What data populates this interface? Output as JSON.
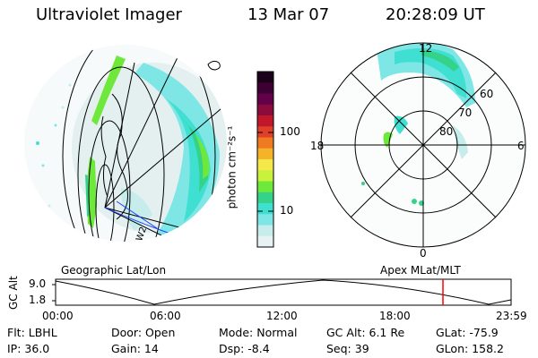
{
  "header": {
    "instrument": "Ultraviolet Imager",
    "date": "13 Mar 07",
    "time": "20:28:09 UT"
  },
  "colorbar": {
    "unit_label": "photon cm⁻²s⁻¹",
    "ticks": [
      "100",
      "10"
    ],
    "colors": [
      "#1a001a",
      "#3c0033",
      "#62004a",
      "#8a0b3c",
      "#c0172b",
      "#e0402a",
      "#f07a22",
      "#f5b32a",
      "#f4e84a",
      "#c8f23c",
      "#6ee83a",
      "#35d28a",
      "#3fe0d2",
      "#7fe6e6",
      "#c6ecec",
      "#e8f2f2"
    ]
  },
  "geo_panel": {
    "label": "Geographic Lat/Lon",
    "edge_mark": "W2"
  },
  "apex_panel": {
    "label": "Apex  MLat/MLT",
    "mlt_labels": [
      "12",
      "18",
      "6",
      "0"
    ],
    "mlat_labels": [
      "60",
      "70",
      "80"
    ]
  },
  "altitude_plot": {
    "ylabel": "GC Alt",
    "yticks": [
      "9.0",
      "1.8"
    ],
    "xticks": [
      "00:00",
      "06:00",
      "12:00",
      "18:00",
      "23:59"
    ],
    "current_time_marker": "20:28",
    "marker_color": "#ff0000"
  },
  "info": {
    "flt": "Flt: LBHL",
    "ip": "IP: 36.0",
    "door": "Door: Open",
    "gain": "Gain: 14",
    "mode": "Mode: Normal",
    "dsp": "Dsp:    -8.4",
    "gc_alt": "GC Alt: 6.1 Re",
    "seq": "Seq: 39",
    "glat": "GLat: -75.9",
    "glon": "GLon: 158.2"
  }
}
